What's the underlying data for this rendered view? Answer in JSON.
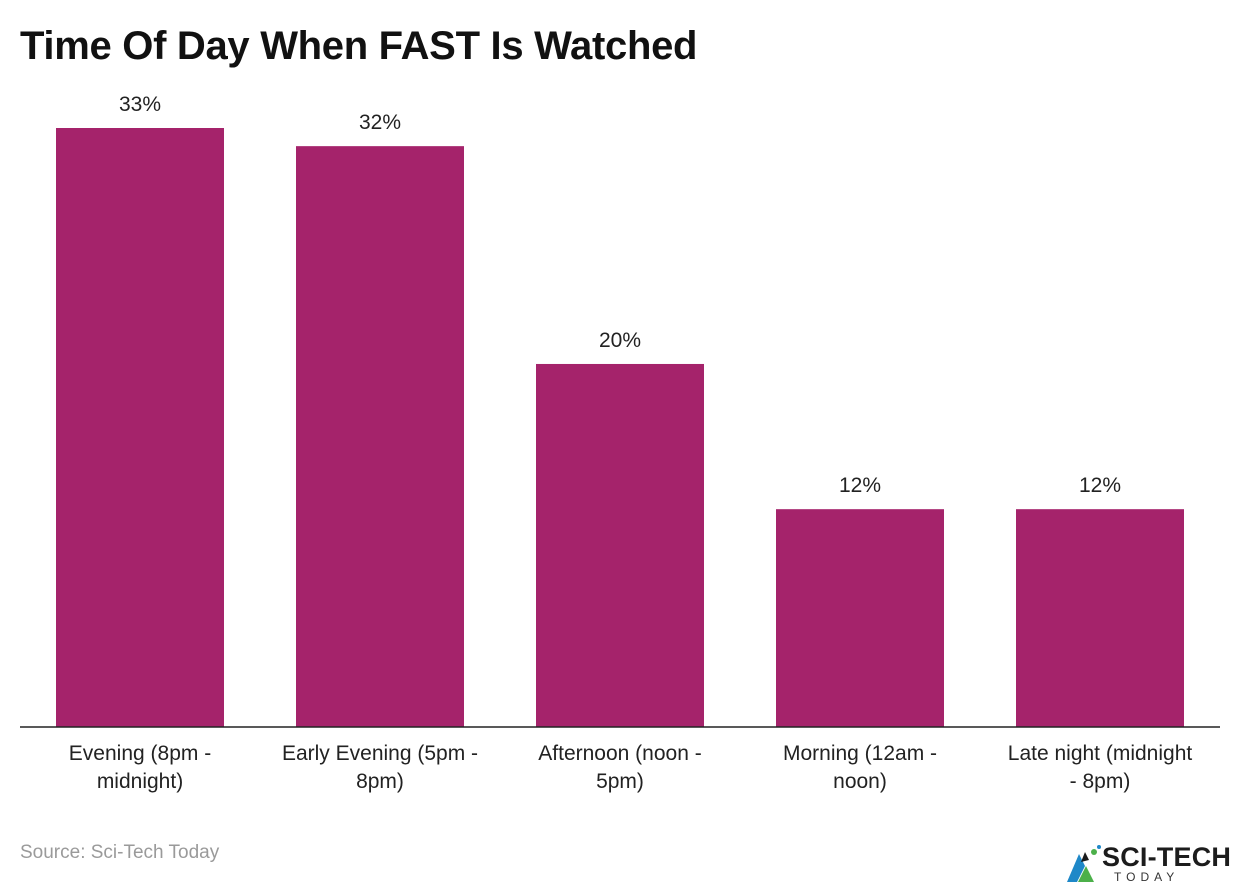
{
  "chart_data": {
    "type": "bar",
    "title": "Time Of Day When FAST Is Watched",
    "categories": [
      [
        "Evening (8pm -",
        "midnight)"
      ],
      [
        "Early Evening (5pm -",
        "8pm)"
      ],
      [
        "Afternoon (noon -",
        "5pm)"
      ],
      [
        "Morning (12am -",
        "noon)"
      ],
      [
        "Late night (midnight",
        "- 8pm)"
      ]
    ],
    "values": [
      33,
      32,
      20,
      12,
      12
    ],
    "value_labels": [
      "33%",
      "32%",
      "20%",
      "12%",
      "12%"
    ],
    "ylim": [
      0,
      33
    ],
    "grid": false,
    "color": "#a5236b"
  },
  "source": "Source: Sci-Tech Today",
  "logo": {
    "name": "SCI-TECH",
    "sub": "TODAY"
  }
}
